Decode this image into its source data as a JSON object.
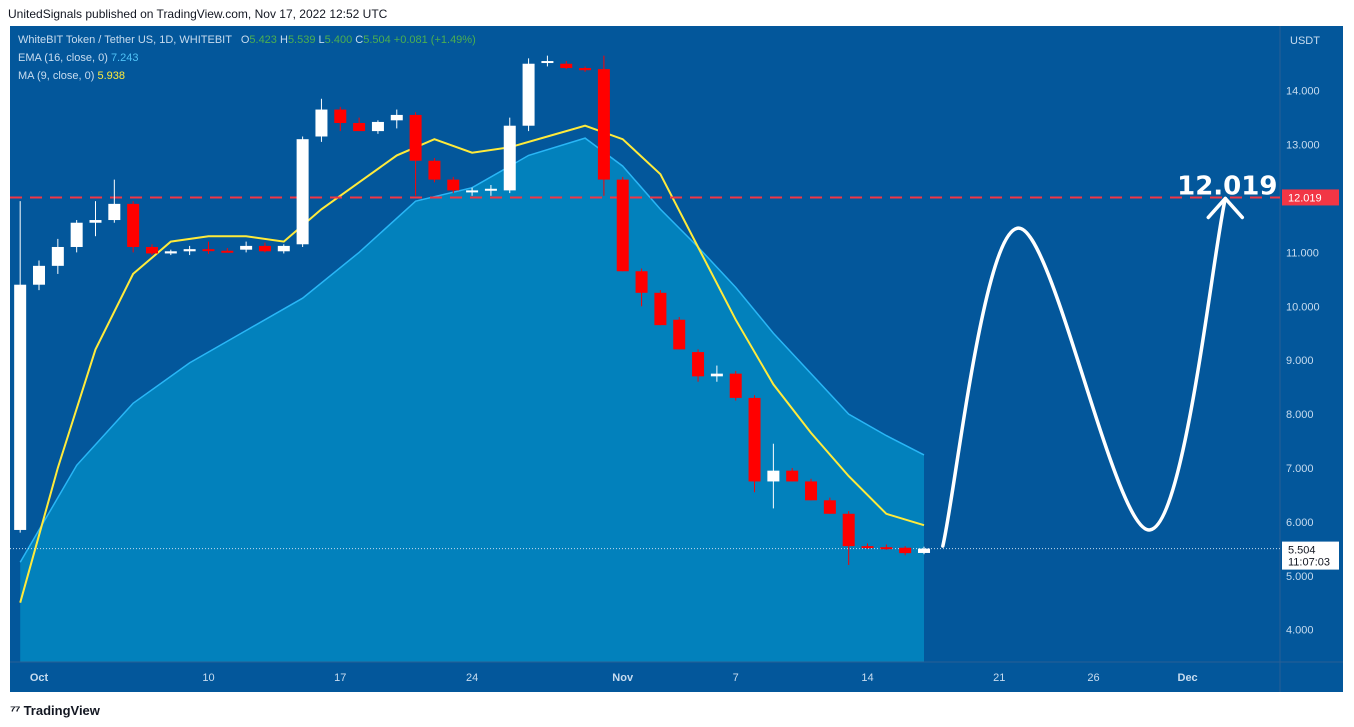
{
  "header": {
    "published": "UnitedSignals published on TradingView.com, Nov 17, 2022 12:52 UTC"
  },
  "legend": {
    "symbol": "WhiteBIT Token / Tether US, 1D, WHITEBIT",
    "o_label": "O",
    "o_value": "5.423",
    "h_label": "H",
    "h_value": "5.539",
    "l_label": "L",
    "l_value": "5.400",
    "c_label": "C",
    "c_value": "5.504",
    "change": "+0.081 (+1.49%)",
    "ema_label": "EMA (16, close, 0)",
    "ema_value": "7.243",
    "ma_label": "MA (9, close, 0)",
    "ma_value": "5.938"
  },
  "footer": {
    "brand": "TradingView"
  },
  "colors": {
    "background": "#03579b",
    "up": "#ffffff",
    "down": "#ff0000",
    "ema_area": "#0288c2",
    "ma_line": "#ffeb3b",
    "target_line": "#f23645"
  },
  "chart_data": {
    "type": "candlestick",
    "currency_label": "USDT",
    "ylim": [
      3.4,
      15.2
    ],
    "y_ticks": [
      "4.000",
      "5.000",
      "6.000",
      "7.000",
      "8.000",
      "9.000",
      "10.000",
      "11.000",
      "12.000",
      "13.000",
      "14.000"
    ],
    "x_ticks": [
      {
        "date": "2022-10-01",
        "label": "Oct"
      },
      {
        "date": "2022-10-10",
        "label": "10"
      },
      {
        "date": "2022-10-17",
        "label": "17"
      },
      {
        "date": "2022-10-24",
        "label": "24"
      },
      {
        "date": "2022-11-01",
        "label": "Nov"
      },
      {
        "date": "2022-11-07",
        "label": "7"
      },
      {
        "date": "2022-11-14",
        "label": "14"
      },
      {
        "date": "2022-11-21",
        "label": "21"
      },
      {
        "date": "2022-11-26",
        "label": "26"
      },
      {
        "date": "2022-12-01",
        "label": "Dec"
      }
    ],
    "candles": [
      {
        "date": "2022-09-30",
        "o": 5.85,
        "h": 11.95,
        "l": 5.8,
        "c": 10.4
      },
      {
        "date": "2022-10-01",
        "o": 10.4,
        "h": 10.85,
        "l": 10.3,
        "c": 10.75
      },
      {
        "date": "2022-10-02",
        "o": 10.75,
        "h": 11.25,
        "l": 10.6,
        "c": 11.1
      },
      {
        "date": "2022-10-03",
        "o": 11.1,
        "h": 11.6,
        "l": 11.0,
        "c": 11.55
      },
      {
        "date": "2022-10-04",
        "o": 11.55,
        "h": 11.95,
        "l": 11.3,
        "c": 11.6
      },
      {
        "date": "2022-10-05",
        "o": 11.6,
        "h": 12.35,
        "l": 11.55,
        "c": 11.9
      },
      {
        "date": "2022-10-06",
        "o": 11.9,
        "h": 11.95,
        "l": 11.0,
        "c": 11.1
      },
      {
        "date": "2022-10-07",
        "o": 11.1,
        "h": 11.15,
        "l": 10.95,
        "c": 10.98
      },
      {
        "date": "2022-10-08",
        "o": 10.98,
        "h": 11.05,
        "l": 10.95,
        "c": 11.02
      },
      {
        "date": "2022-10-09",
        "o": 11.02,
        "h": 11.12,
        "l": 10.95,
        "c": 11.06
      },
      {
        "date": "2022-10-10",
        "o": 11.06,
        "h": 11.2,
        "l": 10.97,
        "c": 11.03
      },
      {
        "date": "2022-10-11",
        "o": 11.03,
        "h": 11.08,
        "l": 11.0,
        "c": 11.01
      },
      {
        "date": "2022-10-12",
        "o": 11.05,
        "h": 11.2,
        "l": 11.0,
        "c": 11.12
      },
      {
        "date": "2022-10-13",
        "o": 11.12,
        "h": 11.18,
        "l": 11.0,
        "c": 11.02
      },
      {
        "date": "2022-10-14",
        "o": 11.02,
        "h": 11.15,
        "l": 10.98,
        "c": 11.12
      },
      {
        "date": "2022-10-15",
        "o": 11.15,
        "h": 13.15,
        "l": 11.1,
        "c": 13.1
      },
      {
        "date": "2022-10-16",
        "o": 13.15,
        "h": 13.85,
        "l": 13.05,
        "c": 13.65
      },
      {
        "date": "2022-10-17",
        "o": 13.65,
        "h": 13.7,
        "l": 13.25,
        "c": 13.4
      },
      {
        "date": "2022-10-18",
        "o": 13.4,
        "h": 13.5,
        "l": 13.25,
        "c": 13.25
      },
      {
        "date": "2022-10-19",
        "o": 13.25,
        "h": 13.45,
        "l": 13.2,
        "c": 13.42
      },
      {
        "date": "2022-10-20",
        "o": 13.45,
        "h": 13.65,
        "l": 13.3,
        "c": 13.55
      },
      {
        "date": "2022-10-21",
        "o": 13.55,
        "h": 13.6,
        "l": 12.05,
        "c": 12.7
      },
      {
        "date": "2022-10-22",
        "o": 12.7,
        "h": 12.75,
        "l": 12.3,
        "c": 12.35
      },
      {
        "date": "2022-10-23",
        "o": 12.35,
        "h": 12.4,
        "l": 12.1,
        "c": 12.15
      },
      {
        "date": "2022-10-24",
        "o": 12.12,
        "h": 12.2,
        "l": 12.05,
        "c": 12.15
      },
      {
        "date": "2022-10-25",
        "o": 12.15,
        "h": 12.25,
        "l": 12.05,
        "c": 12.18
      },
      {
        "date": "2022-10-26",
        "o": 12.15,
        "h": 13.5,
        "l": 12.1,
        "c": 13.35
      },
      {
        "date": "2022-10-27",
        "o": 13.35,
        "h": 14.6,
        "l": 13.25,
        "c": 14.5
      },
      {
        "date": "2022-10-28",
        "o": 14.52,
        "h": 14.65,
        "l": 14.45,
        "c": 14.55
      },
      {
        "date": "2022-10-29",
        "o": 14.5,
        "h": 14.55,
        "l": 14.4,
        "c": 14.42
      },
      {
        "date": "2022-10-30",
        "o": 14.42,
        "h": 14.45,
        "l": 14.35,
        "c": 14.38
      },
      {
        "date": "2022-10-31",
        "o": 14.4,
        "h": 14.65,
        "l": 12.05,
        "c": 12.35
      },
      {
        "date": "2022-11-01",
        "o": 12.35,
        "h": 12.4,
        "l": 10.65,
        "c": 10.65
      },
      {
        "date": "2022-11-02",
        "o": 10.65,
        "h": 10.7,
        "l": 10.0,
        "c": 10.25
      },
      {
        "date": "2022-11-03",
        "o": 10.25,
        "h": 10.3,
        "l": 9.65,
        "c": 9.65
      },
      {
        "date": "2022-11-04",
        "o": 9.75,
        "h": 9.8,
        "l": 9.2,
        "c": 9.2
      },
      {
        "date": "2022-11-05",
        "o": 9.15,
        "h": 9.2,
        "l": 8.6,
        "c": 8.7
      },
      {
        "date": "2022-11-06",
        "o": 8.7,
        "h": 8.9,
        "l": 8.6,
        "c": 8.75
      },
      {
        "date": "2022-11-07",
        "o": 8.75,
        "h": 8.8,
        "l": 8.25,
        "c": 8.3
      },
      {
        "date": "2022-11-08",
        "o": 8.3,
        "h": 8.35,
        "l": 6.55,
        "c": 6.75
      },
      {
        "date": "2022-11-09",
        "o": 6.75,
        "h": 7.45,
        "l": 6.25,
        "c": 6.95
      },
      {
        "date": "2022-11-10",
        "o": 6.95,
        "h": 7.0,
        "l": 6.75,
        "c": 6.75
      },
      {
        "date": "2022-11-11",
        "o": 6.75,
        "h": 6.8,
        "l": 6.4,
        "c": 6.4
      },
      {
        "date": "2022-11-12",
        "o": 6.4,
        "h": 6.45,
        "l": 6.15,
        "c": 6.15
      },
      {
        "date": "2022-11-13",
        "o": 6.15,
        "h": 6.2,
        "l": 5.2,
        "c": 5.55
      },
      {
        "date": "2022-11-14",
        "o": 5.55,
        "h": 5.6,
        "l": 5.5,
        "c": 5.53
      },
      {
        "date": "2022-11-15",
        "o": 5.53,
        "h": 5.58,
        "l": 5.48,
        "c": 5.52
      },
      {
        "date": "2022-11-16",
        "o": 5.52,
        "h": 5.55,
        "l": 5.38,
        "c": 5.42
      },
      {
        "date": "2022-11-17",
        "o": 5.423,
        "h": 5.539,
        "l": 5.4,
        "c": 5.504
      }
    ],
    "ema": [
      {
        "date": "2022-09-30",
        "v": 5.25
      },
      {
        "date": "2022-10-03",
        "v": 7.05
      },
      {
        "date": "2022-10-06",
        "v": 8.2
      },
      {
        "date": "2022-10-09",
        "v": 8.95
      },
      {
        "date": "2022-10-12",
        "v": 9.55
      },
      {
        "date": "2022-10-15",
        "v": 10.15
      },
      {
        "date": "2022-10-18",
        "v": 11.0
      },
      {
        "date": "2022-10-21",
        "v": 11.95
      },
      {
        "date": "2022-10-24",
        "v": 12.2
      },
      {
        "date": "2022-10-27",
        "v": 12.8
      },
      {
        "date": "2022-10-30",
        "v": 13.12
      },
      {
        "date": "2022-11-01",
        "v": 12.6
      },
      {
        "date": "2022-11-03",
        "v": 11.8
      },
      {
        "date": "2022-11-05",
        "v": 11.1
      },
      {
        "date": "2022-11-07",
        "v": 10.35
      },
      {
        "date": "2022-11-09",
        "v": 9.5
      },
      {
        "date": "2022-11-11",
        "v": 8.75
      },
      {
        "date": "2022-11-13",
        "v": 8.0
      },
      {
        "date": "2022-11-15",
        "v": 7.6
      },
      {
        "date": "2022-11-17",
        "v": 7.243
      }
    ],
    "ma": [
      {
        "date": "2022-09-30",
        "v": 4.5
      },
      {
        "date": "2022-10-02",
        "v": 7.0
      },
      {
        "date": "2022-10-04",
        "v": 9.2
      },
      {
        "date": "2022-10-06",
        "v": 10.6
      },
      {
        "date": "2022-10-08",
        "v": 11.2
      },
      {
        "date": "2022-10-10",
        "v": 11.3
      },
      {
        "date": "2022-10-12",
        "v": 11.3
      },
      {
        "date": "2022-10-14",
        "v": 11.2
      },
      {
        "date": "2022-10-16",
        "v": 11.8
      },
      {
        "date": "2022-10-18",
        "v": 12.3
      },
      {
        "date": "2022-10-20",
        "v": 12.8
      },
      {
        "date": "2022-10-22",
        "v": 13.1
      },
      {
        "date": "2022-10-24",
        "v": 12.85
      },
      {
        "date": "2022-10-26",
        "v": 12.95
      },
      {
        "date": "2022-10-28",
        "v": 13.15
      },
      {
        "date": "2022-10-30",
        "v": 13.35
      },
      {
        "date": "2022-11-01",
        "v": 13.1
      },
      {
        "date": "2022-11-03",
        "v": 12.45
      },
      {
        "date": "2022-11-05",
        "v": 11.1
      },
      {
        "date": "2022-11-07",
        "v": 9.75
      },
      {
        "date": "2022-11-09",
        "v": 8.55
      },
      {
        "date": "2022-11-11",
        "v": 7.65
      },
      {
        "date": "2022-11-13",
        "v": 6.85
      },
      {
        "date": "2022-11-15",
        "v": 6.15
      },
      {
        "date": "2022-11-17",
        "v": 5.938
      }
    ],
    "target_level": {
      "value": 12.019,
      "label": "12.019"
    },
    "last_price": {
      "value": 5.504,
      "label": "5.504",
      "countdown": "11:07:03"
    },
    "projection": [
      {
        "date": "2022-11-18",
        "v": 5.55
      },
      {
        "date": "2022-11-22",
        "v": 11.45
      },
      {
        "date": "2022-11-29",
        "v": 5.85
      },
      {
        "date": "2022-12-03",
        "v": 12.0
      }
    ],
    "annotation": {
      "text": "12.019"
    }
  }
}
